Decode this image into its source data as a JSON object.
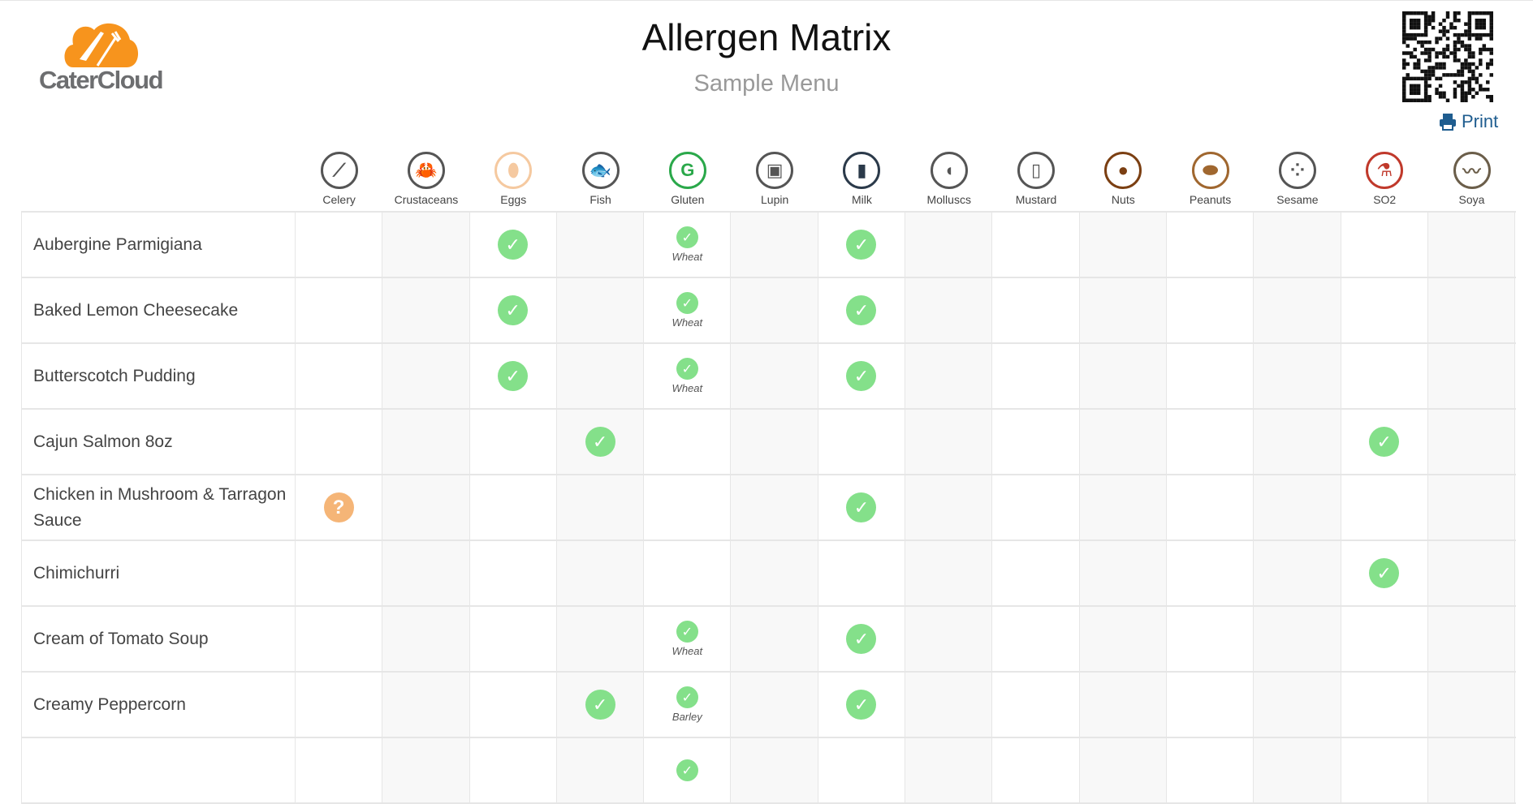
{
  "header": {
    "logo_text": "CaterCloud",
    "title": "Allergen Matrix",
    "subtitle": "Sample Menu",
    "print_label": "Print"
  },
  "colors": {
    "check": "#84e08a",
    "unknown": "#f5b577",
    "print": "#1f5d8f",
    "brand": "#f7941d"
  },
  "allergens": [
    {
      "label": "Celery",
      "icon": "celery-icon",
      "color": "#555",
      "glyph": "⟋"
    },
    {
      "label": "Crustaceans",
      "icon": "crab-icon",
      "color": "#555",
      "glyph": "🦀"
    },
    {
      "label": "Eggs",
      "icon": "egg-icon",
      "color": "#f5c9a0",
      "glyph": "⬮"
    },
    {
      "label": "Fish",
      "icon": "fish-icon",
      "color": "#555",
      "glyph": "🐟"
    },
    {
      "label": "Gluten",
      "icon": "gluten-icon",
      "color": "#2aa84a",
      "glyph": "G"
    },
    {
      "label": "Lupin",
      "icon": "lupin-icon",
      "color": "#555",
      "glyph": "▣"
    },
    {
      "label": "Milk",
      "icon": "milk-icon",
      "color": "#2b3a4a",
      "glyph": "▮"
    },
    {
      "label": "Molluscs",
      "icon": "shell-icon",
      "color": "#555",
      "glyph": "◖"
    },
    {
      "label": "Mustard",
      "icon": "mustard-icon",
      "color": "#555",
      "glyph": "▯"
    },
    {
      "label": "Nuts",
      "icon": "nut-icon",
      "color": "#7b3f12",
      "glyph": "●"
    },
    {
      "label": "Peanuts",
      "icon": "peanut-icon",
      "color": "#a0672f",
      "glyph": "⬬"
    },
    {
      "label": "Sesame",
      "icon": "sesame-icon",
      "color": "#555",
      "glyph": "⁘"
    },
    {
      "label": "SO2",
      "icon": "flask-icon",
      "color": "#c0392b",
      "glyph": "⚗"
    },
    {
      "label": "Soya",
      "icon": "soy-icon",
      "color": "#6b5e4a",
      "glyph": "〰"
    }
  ],
  "rows": [
    {
      "name": "Aubergine Parmigiana",
      "cells": {
        "Eggs": {
          "status": "yes"
        },
        "Gluten": {
          "status": "yes",
          "note": "Wheat"
        },
        "Milk": {
          "status": "yes"
        }
      }
    },
    {
      "name": "Baked Lemon Cheesecake",
      "cells": {
        "Eggs": {
          "status": "yes"
        },
        "Gluten": {
          "status": "yes",
          "note": "Wheat"
        },
        "Milk": {
          "status": "yes"
        }
      }
    },
    {
      "name": "Butterscotch Pudding",
      "cells": {
        "Eggs": {
          "status": "yes"
        },
        "Gluten": {
          "status": "yes",
          "note": "Wheat"
        },
        "Milk": {
          "status": "yes"
        }
      }
    },
    {
      "name": "Cajun Salmon 8oz",
      "cells": {
        "Fish": {
          "status": "yes"
        },
        "SO2": {
          "status": "yes"
        }
      }
    },
    {
      "name": "Chicken in Mushroom & Tarragon Sauce",
      "cells": {
        "Celery": {
          "status": "unknown"
        },
        "Milk": {
          "status": "yes"
        }
      }
    },
    {
      "name": "Chimichurri",
      "cells": {
        "SO2": {
          "status": "yes"
        }
      }
    },
    {
      "name": "Cream of Tomato Soup",
      "cells": {
        "Gluten": {
          "status": "yes",
          "note": "Wheat"
        },
        "Milk": {
          "status": "yes"
        }
      }
    },
    {
      "name": "Creamy Peppercorn",
      "cells": {
        "Fish": {
          "status": "yes"
        },
        "Gluten": {
          "status": "yes",
          "note": "Barley"
        },
        "Milk": {
          "status": "yes"
        }
      }
    },
    {
      "name": "",
      "cells": {
        "Gluten": {
          "status": "yes"
        }
      }
    }
  ]
}
